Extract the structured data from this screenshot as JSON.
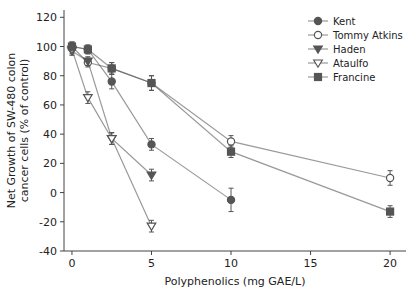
{
  "chart_data": {
    "type": "line",
    "xlabel": "Polyphenolics (mg GAE/L)",
    "ylabel": "Net Growth of SW-480 colon\ncancer cells (% of control)",
    "x": [
      0,
      1,
      2.5,
      5,
      10,
      20
    ],
    "series": [
      {
        "name": "Kent",
        "values": [
          100,
          98,
          76,
          33,
          -5,
          null
        ],
        "errors": [
          3,
          3,
          5,
          4,
          8,
          null
        ],
        "marker": "circle",
        "color": "#555555"
      },
      {
        "name": "Tommy Atkins",
        "values": [
          100,
          89,
          85,
          75,
          35,
          10
        ],
        "errors": [
          3,
          3,
          4,
          5,
          4,
          5
        ],
        "marker": "circle-open",
        "color": "#555555"
      },
      {
        "name": "Haden",
        "values": [
          97,
          90,
          37,
          12,
          null,
          null
        ],
        "errors": [
          3,
          3,
          4,
          4,
          null,
          null
        ],
        "marker": "triangle-down",
        "color": "#555555"
      },
      {
        "name": "Ataulfo",
        "values": [
          98,
          65,
          37,
          -23,
          null,
          null
        ],
        "errors": [
          3,
          4,
          4,
          4,
          null,
          null
        ],
        "marker": "triangle-down-open",
        "color": "#555555"
      },
      {
        "name": "Francine",
        "values": [
          100,
          98,
          85,
          75,
          28,
          -13
        ],
        "errors": [
          3,
          3,
          4,
          5,
          4,
          4
        ],
        "marker": "square",
        "color": "#555555"
      }
    ],
    "xlim": [
      -0.5,
      21
    ],
    "ylim": [
      -40,
      125
    ],
    "xticks": [
      0,
      5,
      10,
      15,
      20
    ],
    "yticks": [
      -40,
      -20,
      0,
      20,
      40,
      60,
      80,
      100,
      120
    ],
    "legend": "upper-right",
    "grid": false
  }
}
